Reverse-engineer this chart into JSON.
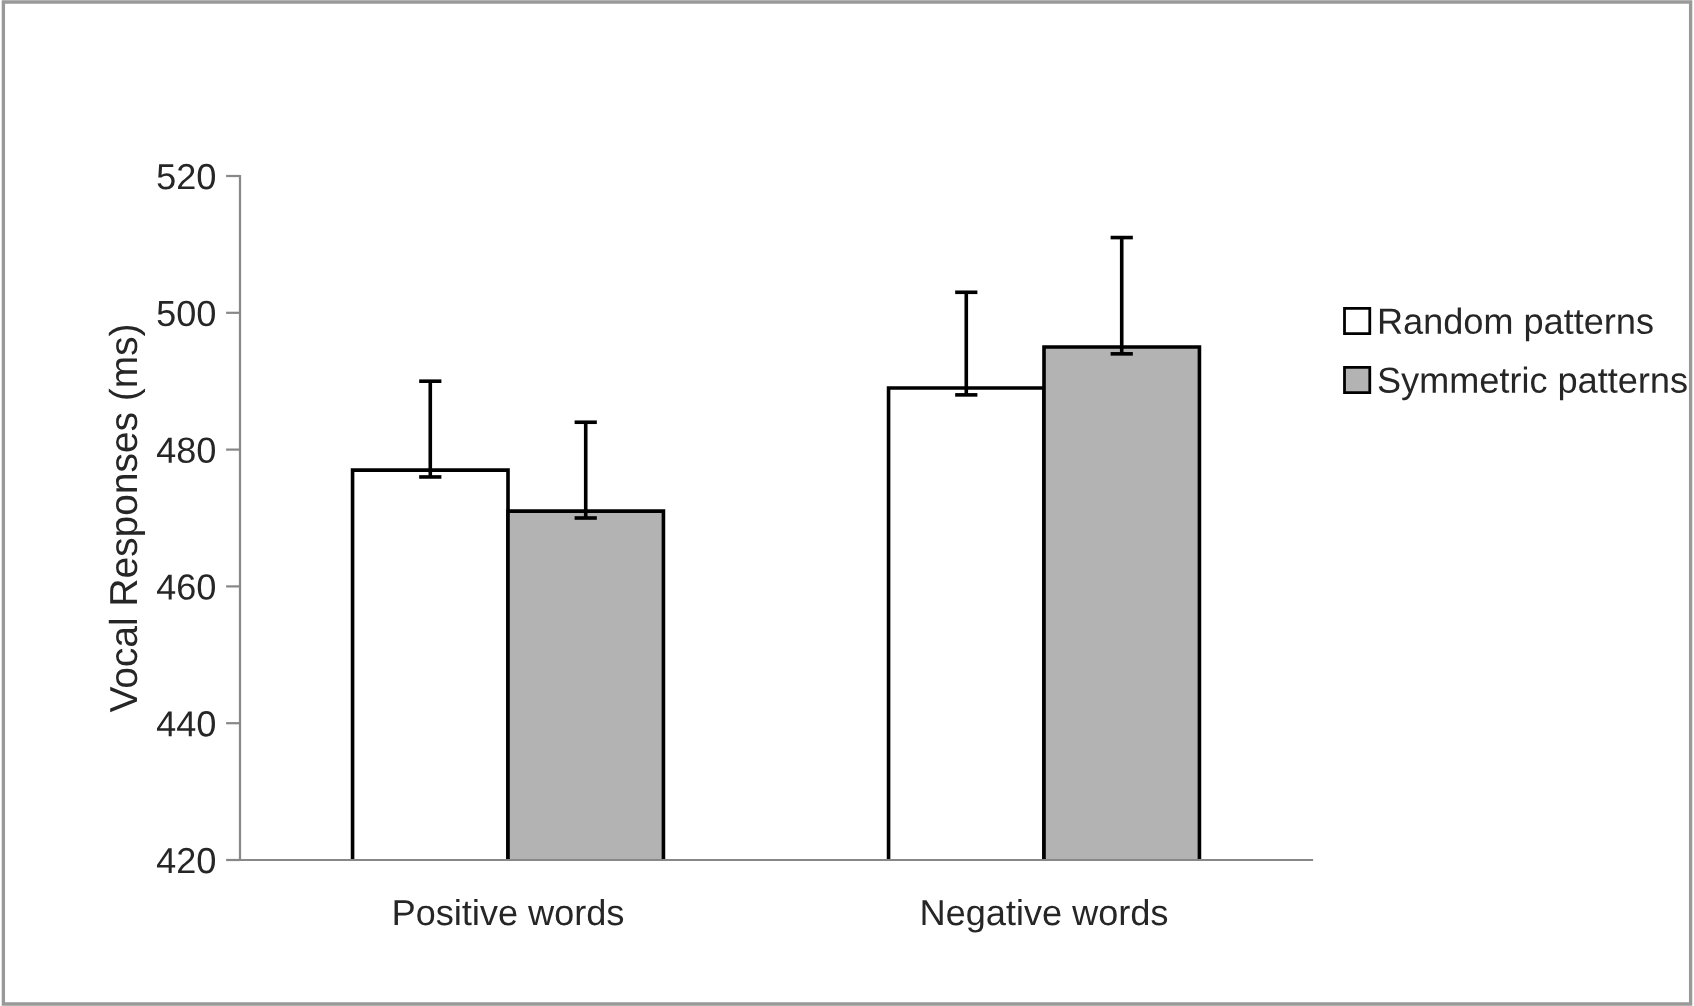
{
  "chart_data": {
    "type": "bar",
    "ylabel": "Vocal Responses (ms)",
    "categories": [
      "Positive words",
      "Negative words"
    ],
    "series": [
      {
        "name": "Random patterns",
        "color": "#ffffff",
        "values": [
          477,
          489
        ],
        "errors": [
          [
            476,
            490
          ],
          [
            488,
            503
          ]
        ]
      },
      {
        "name": "Symmetric patterns",
        "color": "#b3b3b3",
        "values": [
          471,
          495
        ],
        "errors": [
          [
            470,
            484
          ],
          [
            494,
            511
          ]
        ]
      }
    ],
    "ylim": [
      420,
      520
    ],
    "yticks": [
      420,
      440,
      460,
      480,
      500,
      520
    ],
    "grid": false,
    "legend": "right"
  }
}
